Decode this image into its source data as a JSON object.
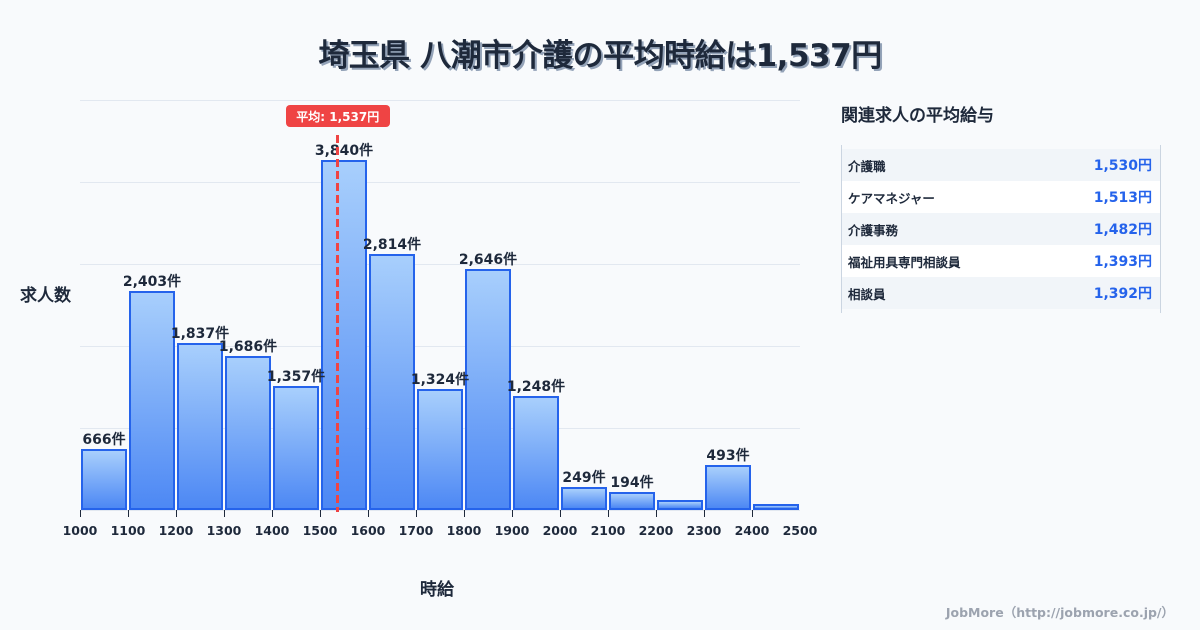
{
  "title": "埼玉県 八潮市介護の平均時給は1,537円",
  "chart_data": {
    "type": "bar",
    "title": "埼玉県 八潮市介護の平均時給は1,537円",
    "xlabel": "時給",
    "ylabel": "求人数",
    "bin_edges": [
      1000,
      1100,
      1200,
      1300,
      1400,
      1500,
      1600,
      1700,
      1800,
      1900,
      2000,
      2100,
      2200,
      2300,
      2400,
      2500
    ],
    "categories": [
      "1000-1100",
      "1100-1200",
      "1200-1300",
      "1300-1400",
      "1400-1500",
      "1500-1600",
      "1600-1700",
      "1700-1800",
      "1800-1900",
      "1900-2000",
      "2000-2100",
      "2100-2200",
      "2200-2300",
      "2300-2400",
      "2400-2500"
    ],
    "values": [
      666,
      2403,
      1837,
      1686,
      1357,
      3840,
      2814,
      1324,
      2646,
      1248,
      249,
      194,
      110,
      493,
      66
    ],
    "value_labels": [
      "666件",
      "2,403件",
      "1,837件",
      "1,686件",
      "1,357件",
      "3,840件",
      "2,814件",
      "1,324件",
      "2,646件",
      "1,248件",
      "249件",
      "194件",
      "",
      "493件",
      ""
    ],
    "x_ticks": [
      "1000",
      "1100",
      "1200",
      "1300",
      "1400",
      "1500",
      "1600",
      "1700",
      "1800",
      "1900",
      "2000",
      "2100",
      "2200",
      "2300",
      "2400",
      "2500"
    ],
    "xlim": [
      1000,
      2500
    ],
    "ylim": [
      0,
      4500
    ],
    "grid": true,
    "average": {
      "value": 1537,
      "label": "平均: 1,537円"
    },
    "colors": {
      "bar_fill_top": "#a8cffc",
      "bar_fill_bottom": "#4d88f4",
      "bar_border": "#2563eb",
      "average_line": "#ef4444"
    }
  },
  "side_panel": {
    "title": "関連求人の平均給与",
    "rows": [
      {
        "name": "介護職",
        "value": "1,530円"
      },
      {
        "name": "ケアマネジャー",
        "value": "1,513円"
      },
      {
        "name": "介護事務",
        "value": "1,482円"
      },
      {
        "name": "福祉用具専門相談員",
        "value": "1,393円"
      },
      {
        "name": "相談員",
        "value": "1,392円"
      }
    ]
  },
  "footer": "JobMore（http://jobmore.co.jp/）"
}
